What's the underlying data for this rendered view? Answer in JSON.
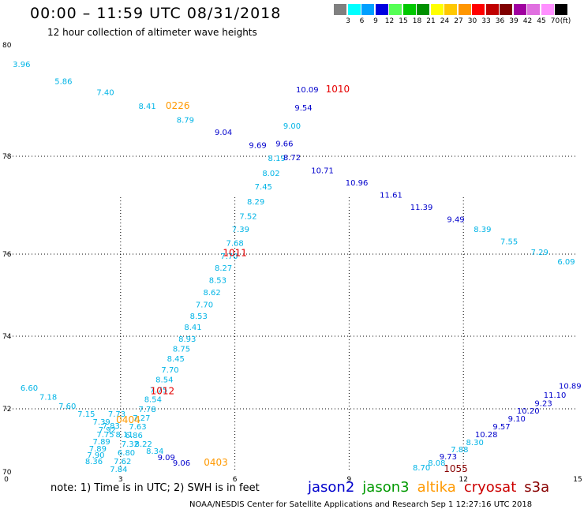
{
  "header": {
    "title": "00:00 – 11:59 UTC 08/31/2018",
    "subtitle": "12 hour collection of altimeter wave heights"
  },
  "legend": {
    "swatches": [
      {
        "color": "#808080",
        "label": "3"
      },
      {
        "color": "#00ffff",
        "label": "6"
      },
      {
        "color": "#00a0ff",
        "label": "9"
      },
      {
        "color": "#0000e0",
        "label": "12"
      },
      {
        "color": "#55ff55",
        "label": "15"
      },
      {
        "color": "#00c800",
        "label": "18"
      },
      {
        "color": "#009000",
        "label": "21"
      },
      {
        "color": "#ffff00",
        "label": "24"
      },
      {
        "color": "#ffc800",
        "label": "27"
      },
      {
        "color": "#ff9600",
        "label": "30"
      },
      {
        "color": "#ff0000",
        "label": "33"
      },
      {
        "color": "#c00000",
        "label": "36"
      },
      {
        "color": "#800000",
        "label": "39"
      },
      {
        "color": "#a000a0",
        "label": "42"
      },
      {
        "color": "#e070e0",
        "label": "45"
      },
      {
        "color": "#ff90ff",
        "label": "70"
      },
      {
        "color": "#000000",
        "label": ""
      }
    ],
    "unit_label": "(ft)"
  },
  "footer": {
    "note": "note: 1) Time is in UTC; 2) SWH is in feet",
    "satellites": [
      {
        "name": "jason2",
        "color": "#0000cc"
      },
      {
        "name": "jason3",
        "color": "#009900"
      },
      {
        "name": "altika",
        "color": "#ff9900"
      },
      {
        "name": "cryosat",
        "color": "#cc0000"
      },
      {
        "name": "s3a",
        "color": "#880000"
      }
    ],
    "credit": "NOAA/NESDIS Center for Satellite Applications and Research     Sep  1 12:27:16 UTC 2018"
  },
  "chart_data": {
    "type": "scatter",
    "x_ticks": [
      "0",
      "3",
      "6",
      "9",
      "12",
      "15"
    ],
    "y_ticks": [
      "70",
      "72",
      "74",
      "76",
      "78",
      "80"
    ],
    "xlim": [
      0,
      15
    ],
    "ylim": [
      70,
      80
    ],
    "grid": true,
    "colors": {
      "cyan": "#00b4e6",
      "blue": "#0000cc",
      "orange": "#ff9900",
      "red": "#e60000",
      "darkred": "#880000"
    },
    "time_labels": [
      {
        "text": "0226",
        "lon": 4.5,
        "lat": 78.85,
        "color": "orange"
      },
      {
        "text": "1010",
        "lon": 8.7,
        "lat": 79.15,
        "color": "red"
      },
      {
        "text": "1011",
        "lon": 6.0,
        "lat": 75.95,
        "color": "red"
      },
      {
        "text": "1012",
        "lon": 4.1,
        "lat": 72.4,
        "color": "red"
      },
      {
        "text": "0404",
        "lon": 3.2,
        "lat": 71.55,
        "color": "orange"
      },
      {
        "text": "0403",
        "lon": 5.5,
        "lat": 70.2,
        "color": "orange"
      },
      {
        "text": "1055",
        "lon": 11.8,
        "lat": 70.0,
        "color": "darkred"
      }
    ],
    "points": [
      {
        "v": "3.96",
        "lon": 0.4,
        "lat": 79.6,
        "c": "cyan"
      },
      {
        "v": "5.86",
        "lon": 1.5,
        "lat": 79.3,
        "c": "cyan"
      },
      {
        "v": "7.40",
        "lon": 2.6,
        "lat": 79.1,
        "c": "cyan"
      },
      {
        "v": "8.41",
        "lon": 3.7,
        "lat": 78.85,
        "c": "cyan"
      },
      {
        "v": "8.79",
        "lon": 4.7,
        "lat": 78.6,
        "c": "cyan"
      },
      {
        "v": "9.04",
        "lon": 5.7,
        "lat": 78.38,
        "c": "blue"
      },
      {
        "v": "9.69",
        "lon": 6.6,
        "lat": 78.15,
        "c": "blue"
      },
      {
        "v": "10.09",
        "lon": 7.9,
        "lat": 79.15,
        "c": "blue"
      },
      {
        "v": "9.54",
        "lon": 7.8,
        "lat": 78.82,
        "c": "blue"
      },
      {
        "v": "9.00",
        "lon": 7.5,
        "lat": 78.5,
        "c": "cyan"
      },
      {
        "v": "9.66",
        "lon": 7.3,
        "lat": 78.18,
        "c": "blue"
      },
      {
        "v": "8.19",
        "lon": 7.1,
        "lat": 77.9,
        "c": "cyan"
      },
      {
        "v": "8.72",
        "lon": 7.5,
        "lat": 77.92,
        "c": "blue"
      },
      {
        "v": "10.71",
        "lon": 8.3,
        "lat": 77.65,
        "c": "blue"
      },
      {
        "v": "10.96",
        "lon": 9.2,
        "lat": 77.4,
        "c": "blue"
      },
      {
        "v": "11.61",
        "lon": 10.1,
        "lat": 77.15,
        "c": "blue"
      },
      {
        "v": "11.39",
        "lon": 10.9,
        "lat": 76.9,
        "c": "blue"
      },
      {
        "v": "9.49",
        "lon": 11.8,
        "lat": 76.65,
        "c": "blue"
      },
      {
        "v": "8.39",
        "lon": 12.5,
        "lat": 76.45,
        "c": "cyan"
      },
      {
        "v": "7.55",
        "lon": 13.2,
        "lat": 76.2,
        "c": "cyan"
      },
      {
        "v": "7.29",
        "lon": 14.0,
        "lat": 75.98,
        "c": "cyan"
      },
      {
        "v": "6.09",
        "lon": 14.7,
        "lat": 75.75,
        "c": "cyan"
      },
      {
        "v": "8.02",
        "lon": 6.95,
        "lat": 77.6,
        "c": "cyan"
      },
      {
        "v": "7.45",
        "lon": 6.75,
        "lat": 77.32,
        "c": "cyan"
      },
      {
        "v": "8.29",
        "lon": 6.55,
        "lat": 77.02,
        "c": "cyan"
      },
      {
        "v": "7.52",
        "lon": 6.35,
        "lat": 76.72,
        "c": "cyan"
      },
      {
        "v": "7.39",
        "lon": 6.15,
        "lat": 76.45,
        "c": "cyan"
      },
      {
        "v": "7.68",
        "lon": 6.0,
        "lat": 76.17,
        "c": "cyan"
      },
      {
        "v": "7.70",
        "lon": 5.85,
        "lat": 75.88,
        "c": "cyan"
      },
      {
        "v": "8.27",
        "lon": 5.7,
        "lat": 75.6,
        "c": "cyan"
      },
      {
        "v": "8.53",
        "lon": 5.55,
        "lat": 75.3,
        "c": "cyan"
      },
      {
        "v": "8.62",
        "lon": 5.4,
        "lat": 75.0,
        "c": "cyan"
      },
      {
        "v": "7.70",
        "lon": 5.2,
        "lat": 74.7,
        "c": "cyan"
      },
      {
        "v": "8.53",
        "lon": 5.05,
        "lat": 74.42,
        "c": "cyan"
      },
      {
        "v": "8.41",
        "lon": 4.9,
        "lat": 74.15,
        "c": "cyan"
      },
      {
        "v": "8.93",
        "lon": 4.75,
        "lat": 73.85,
        "c": "cyan"
      },
      {
        "v": "8.75",
        "lon": 4.6,
        "lat": 73.58,
        "c": "cyan"
      },
      {
        "v": "8.45",
        "lon": 4.45,
        "lat": 73.3,
        "c": "cyan"
      },
      {
        "v": "7.70",
        "lon": 4.3,
        "lat": 73.0,
        "c": "cyan"
      },
      {
        "v": "8.54",
        "lon": 4.15,
        "lat": 72.73,
        "c": "cyan"
      },
      {
        "v": "7.75",
        "lon": 4.0,
        "lat": 72.45,
        "c": "cyan"
      },
      {
        "v": "8.54",
        "lon": 3.85,
        "lat": 72.18,
        "c": "cyan"
      },
      {
        "v": "7.78",
        "lon": 3.7,
        "lat": 71.9,
        "c": "cyan"
      },
      {
        "v": "7.27",
        "lon": 3.55,
        "lat": 71.62,
        "c": "cyan"
      },
      {
        "v": "7.63",
        "lon": 3.45,
        "lat": 71.35,
        "c": "cyan"
      },
      {
        "v": "6.86",
        "lon": 3.35,
        "lat": 71.08,
        "c": "cyan"
      },
      {
        "v": "7.32",
        "lon": 3.25,
        "lat": 70.8,
        "c": "cyan"
      },
      {
        "v": "6.80",
        "lon": 3.15,
        "lat": 70.52,
        "c": "cyan"
      },
      {
        "v": "7.62",
        "lon": 3.05,
        "lat": 70.25,
        "c": "cyan"
      },
      {
        "v": "7.84",
        "lon": 2.95,
        "lat": 70.0,
        "c": "cyan"
      },
      {
        "v": "6.60",
        "lon": 0.6,
        "lat": 72.5,
        "c": "cyan"
      },
      {
        "v": "7.18",
        "lon": 1.1,
        "lat": 72.25,
        "c": "cyan"
      },
      {
        "v": "7.60",
        "lon": 1.6,
        "lat": 72.0,
        "c": "cyan"
      },
      {
        "v": "7.15",
        "lon": 2.1,
        "lat": 71.75,
        "c": "cyan"
      },
      {
        "v": "7.73",
        "lon": 2.9,
        "lat": 71.75,
        "c": "cyan"
      },
      {
        "v": "7.39",
        "lon": 2.5,
        "lat": 71.5,
        "c": "cyan"
      },
      {
        "v": "7.83",
        "lon": 2.75,
        "lat": 71.38,
        "c": "cyan"
      },
      {
        "v": "7.92",
        "lon": 2.65,
        "lat": 71.25,
        "c": "cyan"
      },
      {
        "v": "7.75",
        "lon": 2.6,
        "lat": 71.1,
        "c": "cyan"
      },
      {
        "v": "8.11",
        "lon": 3.1,
        "lat": 71.1,
        "c": "cyan"
      },
      {
        "v": "7.89",
        "lon": 2.5,
        "lat": 70.88,
        "c": "cyan"
      },
      {
        "v": "8.22",
        "lon": 3.6,
        "lat": 70.8,
        "c": "cyan"
      },
      {
        "v": "7.89",
        "lon": 2.4,
        "lat": 70.65,
        "c": "cyan"
      },
      {
        "v": "8.34",
        "lon": 3.9,
        "lat": 70.58,
        "c": "cyan"
      },
      {
        "v": "7.90",
        "lon": 2.35,
        "lat": 70.45,
        "c": "cyan"
      },
      {
        "v": "9.09",
        "lon": 4.2,
        "lat": 70.38,
        "c": "blue"
      },
      {
        "v": "8.36",
        "lon": 2.3,
        "lat": 70.25,
        "c": "cyan"
      },
      {
        "v": "9.06",
        "lon": 4.6,
        "lat": 70.2,
        "c": "blue"
      },
      {
        "v": "8.70",
        "lon": 10.9,
        "lat": 70.05,
        "c": "cyan"
      },
      {
        "v": "8.08",
        "lon": 11.3,
        "lat": 70.2,
        "c": "cyan"
      },
      {
        "v": "9.73",
        "lon": 11.6,
        "lat": 70.4,
        "c": "blue"
      },
      {
        "v": "7.88",
        "lon": 11.9,
        "lat": 70.62,
        "c": "cyan"
      },
      {
        "v": "8.30",
        "lon": 12.3,
        "lat": 70.85,
        "c": "cyan"
      },
      {
        "v": "10.28",
        "lon": 12.6,
        "lat": 71.1,
        "c": "blue"
      },
      {
        "v": "9.57",
        "lon": 13.0,
        "lat": 71.35,
        "c": "blue"
      },
      {
        "v": "9.10",
        "lon": 13.4,
        "lat": 71.6,
        "c": "blue"
      },
      {
        "v": "10.20",
        "lon": 13.7,
        "lat": 71.85,
        "c": "blue"
      },
      {
        "v": "9.23",
        "lon": 14.1,
        "lat": 72.08,
        "c": "blue"
      },
      {
        "v": "11.10",
        "lon": 14.4,
        "lat": 72.3,
        "c": "blue"
      },
      {
        "v": "10.89",
        "lon": 14.8,
        "lat": 72.55,
        "c": "blue"
      }
    ]
  }
}
